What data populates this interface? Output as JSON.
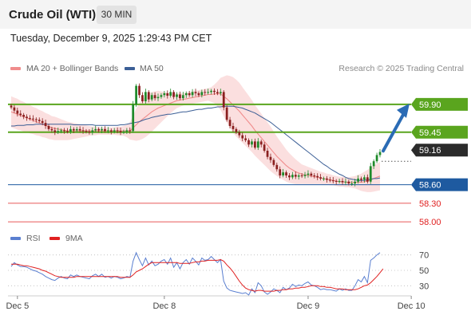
{
  "header": {
    "title": "Crude Oil (WTI)",
    "timeframe": "30 MIN"
  },
  "timestamp": "Tuesday, December 9, 2025 1:29:43 PM CET",
  "credit": "Research © 2025 Trading Central",
  "colors": {
    "bollinger": "#f08c8c",
    "ma50": "#3c5f96",
    "resistance": "#5aa51e",
    "support": "#1e5aa0",
    "support_extra": "#e02020",
    "current": "#2b2b2b",
    "arrow": "#2a6bb5",
    "candle_up": "#1f8a2a",
    "candle_down": "#8a1f1f",
    "rsi": "#5a7fd0",
    "rsi_ma": "#e02020"
  },
  "chart_data": [
    {
      "type": "candlestick",
      "legend": [
        {
          "name": "MA 20 + Bollinger Bands",
          "color": "#f08c8c"
        },
        {
          "name": "MA 50",
          "color": "#3c5f96"
        }
      ],
      "ylim": [
        57.95,
        60.35
      ],
      "x_ticks": [
        {
          "label": "Dec 5",
          "index": 2
        },
        {
          "label": "Dec 8",
          "index": 49
        },
        {
          "label": "Dec 9",
          "index": 95
        },
        {
          "label": "Dec 10",
          "index": 128
        }
      ],
      "levels": [
        {
          "label": "59.90",
          "value": 59.9,
          "kind": "resistance"
        },
        {
          "label": "59.45",
          "value": 59.45,
          "kind": "resistance"
        },
        {
          "label": "59.16",
          "value": 59.16,
          "kind": "current"
        },
        {
          "label": "58.60",
          "value": 58.6,
          "kind": "support"
        },
        {
          "label": "58.30",
          "value": 58.3,
          "kind": "support_extra"
        },
        {
          "label": "58.00",
          "value": 58.0,
          "kind": "support_extra"
        }
      ],
      "close": [
        59.85,
        59.8,
        59.75,
        59.73,
        59.7,
        59.68,
        59.67,
        59.66,
        59.65,
        59.63,
        59.6,
        59.55,
        59.5,
        59.48,
        59.45,
        59.47,
        59.48,
        59.47,
        59.46,
        59.5,
        59.48,
        59.5,
        59.48,
        59.47,
        59.46,
        59.45,
        59.48,
        59.5,
        59.48,
        59.5,
        59.47,
        59.48,
        59.46,
        59.48,
        59.47,
        59.45,
        59.46,
        59.48,
        59.47,
        59.9,
        60.2,
        60.05,
        59.95,
        60.1,
        59.98,
        60.05,
        60.0,
        60.02,
        60.05,
        60.08,
        60.04,
        60.1,
        60.02,
        60.06,
        60.0,
        60.05,
        60.08,
        60.05,
        60.1,
        60.08,
        60.05,
        60.1,
        60.09,
        60.1,
        60.12,
        60.1,
        60.08,
        60.1,
        59.85,
        59.65,
        59.55,
        59.5,
        59.45,
        59.4,
        59.35,
        59.32,
        59.25,
        59.3,
        59.2,
        59.3,
        59.25,
        59.15,
        59.05,
        59.0,
        58.92,
        58.85,
        58.75,
        58.8,
        58.75,
        58.72,
        58.76,
        58.73,
        58.75,
        58.74,
        58.76,
        58.78,
        58.75,
        58.74,
        58.72,
        58.7,
        58.7,
        58.68,
        58.67,
        58.66,
        58.65,
        58.66,
        58.64,
        58.65,
        58.62,
        58.62,
        58.65,
        58.7,
        58.68,
        58.72,
        58.65,
        58.9,
        58.98,
        59.08,
        59.13
      ],
      "ma20": [
        59.78,
        59.76,
        59.74,
        59.72,
        59.7,
        59.68,
        59.66,
        59.64,
        59.62,
        59.6,
        59.58,
        59.56,
        59.54,
        59.52,
        59.51,
        59.5,
        59.49,
        59.48,
        59.47,
        59.47,
        59.47,
        59.47,
        59.47,
        59.47,
        59.47,
        59.47,
        59.47,
        59.47,
        59.47,
        59.47,
        59.47,
        59.47,
        59.47,
        59.47,
        59.47,
        59.47,
        59.47,
        59.47,
        59.47,
        59.52,
        59.57,
        59.62,
        59.66,
        59.7,
        59.74,
        59.78,
        59.81,
        59.84,
        59.86,
        59.88,
        59.9,
        59.92,
        59.94,
        59.96,
        59.97,
        59.98,
        59.99,
        60.0,
        60.01,
        60.02,
        60.03,
        60.04,
        60.05,
        60.06,
        60.06,
        60.07,
        60.07,
        60.07,
        60.03,
        59.99,
        59.94,
        59.89,
        59.84,
        59.79,
        59.73,
        59.67,
        59.61,
        59.55,
        59.48,
        59.42,
        59.36,
        59.3,
        59.24,
        59.18,
        59.12,
        59.06,
        59.01,
        58.96,
        58.91,
        58.87,
        58.84,
        58.81,
        58.79,
        58.77,
        58.76,
        58.75,
        58.74,
        58.73,
        58.72,
        58.71,
        58.7,
        58.69,
        58.68,
        58.67,
        58.66,
        58.65,
        58.65,
        58.64,
        58.64,
        58.64,
        58.64,
        58.64,
        58.64,
        58.65,
        58.66,
        58.68,
        58.7,
        58.72,
        58.74
      ],
      "ma50": [
        59.55,
        59.55,
        59.56,
        59.56,
        59.56,
        59.57,
        59.57,
        59.57,
        59.58,
        59.58,
        59.58,
        59.58,
        59.58,
        59.58,
        59.58,
        59.58,
        59.58,
        59.58,
        59.58,
        59.58,
        59.57,
        59.57,
        59.57,
        59.57,
        59.57,
        59.57,
        59.57,
        59.56,
        59.56,
        59.56,
        59.56,
        59.56,
        59.56,
        59.56,
        59.56,
        59.57,
        59.57,
        59.58,
        59.59,
        59.6,
        59.61,
        59.62,
        59.64,
        59.66,
        59.67,
        59.69,
        59.7,
        59.71,
        59.72,
        59.73,
        59.74,
        59.74,
        59.75,
        59.76,
        59.77,
        59.78,
        59.78,
        59.79,
        59.8,
        59.81,
        59.82,
        59.82,
        59.83,
        59.84,
        59.84,
        59.85,
        59.86,
        59.86,
        59.87,
        59.87,
        59.87,
        59.87,
        59.86,
        59.85,
        59.84,
        59.82,
        59.8,
        59.78,
        59.76,
        59.73,
        59.7,
        59.67,
        59.64,
        59.61,
        59.57,
        59.53,
        59.49,
        59.45,
        59.41,
        59.37,
        59.33,
        59.29,
        59.25,
        59.21,
        59.17,
        59.13,
        59.09,
        59.05,
        59.01,
        58.97,
        58.93,
        58.9,
        58.86,
        58.83,
        58.8,
        58.77,
        58.75,
        58.72,
        58.7,
        58.69,
        58.68,
        58.67,
        58.67,
        58.67,
        58.68,
        58.69,
        58.7,
        58.7,
        58.71
      ],
      "bb_width": [
        0.25,
        0.25,
        0.25,
        0.24,
        0.24,
        0.23,
        0.23,
        0.22,
        0.22,
        0.21,
        0.21,
        0.2,
        0.2,
        0.19,
        0.19,
        0.18,
        0.17,
        0.16,
        0.15,
        0.14,
        0.13,
        0.12,
        0.11,
        0.1,
        0.09,
        0.08,
        0.07,
        0.07,
        0.06,
        0.06,
        0.06,
        0.06,
        0.06,
        0.06,
        0.07,
        0.07,
        0.08,
        0.1,
        0.14,
        0.2,
        0.26,
        0.3,
        0.32,
        0.33,
        0.33,
        0.32,
        0.3,
        0.28,
        0.25,
        0.22,
        0.19,
        0.16,
        0.14,
        0.12,
        0.11,
        0.1,
        0.1,
        0.1,
        0.1,
        0.1,
        0.1,
        0.1,
        0.1,
        0.1,
        0.12,
        0.15,
        0.2,
        0.26,
        0.32,
        0.38,
        0.42,
        0.45,
        0.46,
        0.46,
        0.45,
        0.44,
        0.43,
        0.42,
        0.41,
        0.4,
        0.39,
        0.38,
        0.37,
        0.36,
        0.34,
        0.32,
        0.3,
        0.28,
        0.26,
        0.24,
        0.22,
        0.2,
        0.18,
        0.16,
        0.15,
        0.14,
        0.13,
        0.12,
        0.11,
        0.1,
        0.1,
        0.09,
        0.09,
        0.08,
        0.08,
        0.08,
        0.08,
        0.08,
        0.08,
        0.09,
        0.1,
        0.12,
        0.14,
        0.16,
        0.18,
        0.2,
        0.21,
        0.22,
        0.23
      ],
      "forecast": {
        "from": 59.16,
        "to": 59.9
      }
    },
    {
      "type": "line",
      "legend": [
        {
          "name": "RSI",
          "color": "#5a7fd0"
        },
        {
          "name": "9MA",
          "color": "#e02020"
        }
      ],
      "ylim": [
        20,
        80
      ],
      "y_ticks": [
        "70",
        "50",
        "30"
      ],
      "y_tick_values": [
        70,
        50,
        30
      ],
      "rsi": [
        55,
        60,
        57,
        55,
        55,
        54,
        52,
        50,
        49,
        47,
        45,
        42,
        40,
        38,
        37,
        40,
        42,
        40,
        39,
        44,
        42,
        44,
        42,
        41,
        40,
        39,
        43,
        45,
        42,
        45,
        41,
        42,
        40,
        42,
        41,
        39,
        40,
        42,
        41,
        62,
        73,
        64,
        56,
        66,
        57,
        62,
        56,
        58,
        62,
        64,
        58,
        66,
        54,
        60,
        52,
        60,
        64,
        58,
        66,
        62,
        57,
        66,
        63,
        64,
        68,
        64,
        60,
        64,
        36,
        27,
        24,
        23,
        22,
        21,
        20,
        21,
        18,
        26,
        21,
        34,
        30,
        22,
        19,
        22,
        26,
        24,
        21,
        28,
        25,
        27,
        32,
        29,
        31,
        30,
        33,
        35,
        31,
        30,
        28,
        25,
        26,
        25,
        25,
        24,
        23,
        26,
        24,
        26,
        24,
        24,
        30,
        38,
        35,
        42,
        34,
        63,
        66,
        70,
        73
      ],
      "rsi_ma": [
        58,
        58,
        58,
        57,
        56,
        56,
        55,
        54,
        53,
        52,
        50,
        49,
        47,
        45,
        43,
        42,
        41,
        41,
        41,
        41,
        41,
        42,
        42,
        42,
        42,
        42,
        42,
        42,
        42,
        42,
        42,
        42,
        42,
        42,
        42,
        41,
        41,
        41,
        41,
        44,
        48,
        50,
        52,
        55,
        58,
        60,
        60,
        60,
        60,
        60,
        60,
        60,
        60,
        60,
        59,
        59,
        59,
        59,
        60,
        61,
        61,
        62,
        62,
        63,
        63,
        63,
        63,
        64,
        62,
        57,
        53,
        48,
        42,
        36,
        31,
        27,
        25,
        24,
        23,
        24,
        24,
        23,
        23,
        23,
        23,
        24,
        24,
        25,
        25,
        26,
        26,
        27,
        27,
        28,
        28,
        29,
        30,
        30,
        30,
        29,
        29,
        28,
        28,
        27,
        26,
        26,
        26,
        25,
        25,
        25,
        25,
        26,
        28,
        30,
        31,
        34,
        38,
        42,
        47,
        52
      ]
    }
  ]
}
